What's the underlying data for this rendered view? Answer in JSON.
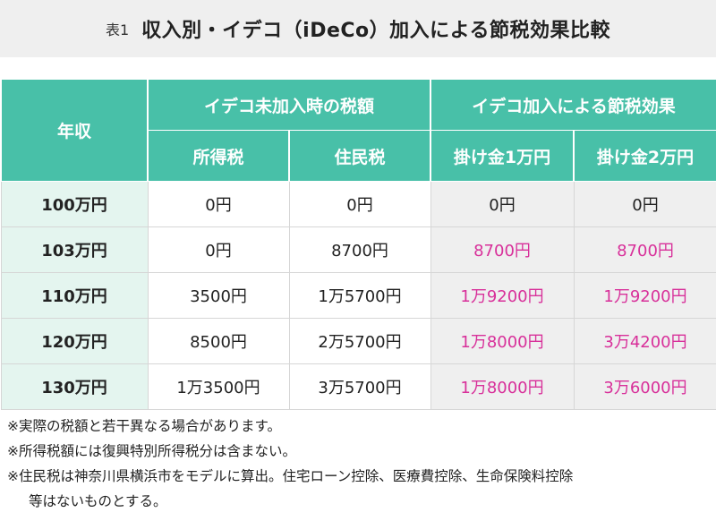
{
  "title": {
    "prefix": "表1",
    "main": "収入別・イデコ（iDeCo）加入による節税効果比較"
  },
  "table": {
    "header": {
      "row_label": "年収",
      "group_before": "イデコ未加入時の税額",
      "group_after": "イデコ加入による節税効果",
      "columns": [
        "所得税",
        "住民税",
        "掛け金1万円",
        "掛け金2万円"
      ]
    },
    "rows": [
      {
        "income": "100万円",
        "income_tax": "0円",
        "resident_tax": "0円",
        "effect_1man": "0円",
        "effect_2man": "0円",
        "highlight": false
      },
      {
        "income": "103万円",
        "income_tax": "0円",
        "resident_tax": "8700円",
        "effect_1man": "8700円",
        "effect_2man": "8700円",
        "highlight": true
      },
      {
        "income": "110万円",
        "income_tax": "3500円",
        "resident_tax": "1万5700円",
        "effect_1man": "1万9200円",
        "effect_2man": "1万9200円",
        "highlight": true
      },
      {
        "income": "120万円",
        "income_tax": "8500円",
        "resident_tax": "2万5700円",
        "effect_1man": "1万8000円",
        "effect_2man": "3万4200円",
        "highlight": true
      },
      {
        "income": "130万円",
        "income_tax": "1万3500円",
        "resident_tax": "3万5700円",
        "effect_1man": "1万8000円",
        "effect_2man": "3万6000円",
        "highlight": true
      }
    ]
  },
  "notes": [
    "※実際の税額と若干異なる場合があります。",
    "※所得税額には復興特別所得税分は含まない。",
    "※住民税は神奈川県横浜市をモデルに算出。住宅ローン控除、医療費控除、生命保険料控除",
    "等はないものとする。"
  ],
  "colors": {
    "header_bg": "#48c0a8",
    "row_header_bg": "#e4f5ef",
    "effect_bg": "#efefef",
    "highlight_text": "#d8309a",
    "title_band_bg": "#efefef"
  }
}
